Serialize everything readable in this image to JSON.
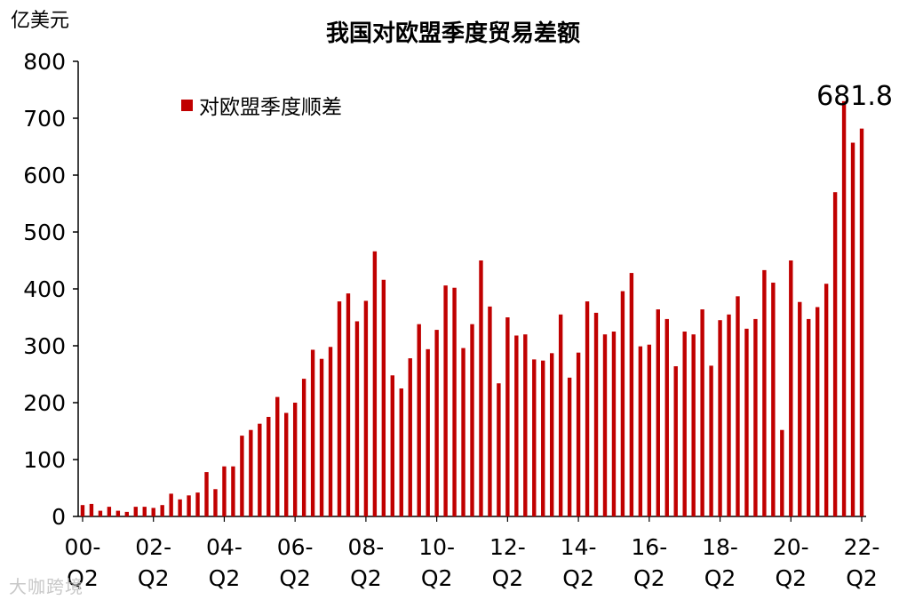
{
  "watermark": "大咖跨境",
  "chart_data": {
    "type": "bar",
    "title": "我国对欧盟季度贸易差额",
    "unit_label": "亿美元",
    "legend_position": "top-left",
    "grid": false,
    "ylim": [
      0,
      800
    ],
    "yticks": [
      "0",
      "100",
      "200",
      "300",
      "400",
      "500",
      "600",
      "700",
      "800"
    ],
    "xtick_labels": [
      {
        "index": 0,
        "top": "00-",
        "bottom": "Q2"
      },
      {
        "index": 8,
        "top": "02-",
        "bottom": "Q2"
      },
      {
        "index": 16,
        "top": "04-",
        "bottom": "Q2"
      },
      {
        "index": 24,
        "top": "06-",
        "bottom": "Q2"
      },
      {
        "index": 32,
        "top": "08-",
        "bottom": "Q2"
      },
      {
        "index": 40,
        "top": "10-",
        "bottom": "Q2"
      },
      {
        "index": 48,
        "top": "12-",
        "bottom": "Q2"
      },
      {
        "index": 56,
        "top": "14-",
        "bottom": "Q2"
      },
      {
        "index": 64,
        "top": "16-",
        "bottom": "Q2"
      },
      {
        "index": 72,
        "top": "18-",
        "bottom": "Q2"
      },
      {
        "index": 80,
        "top": "20-",
        "bottom": "Q2"
      },
      {
        "index": 88,
        "top": "22-",
        "bottom": "Q2"
      }
    ],
    "annotation": {
      "index": 88,
      "text": "681.8"
    },
    "series": [
      {
        "name": "对欧盟季度顺差",
        "color": "#c00000",
        "values": [
          20,
          22,
          10,
          17,
          10,
          8,
          17,
          17,
          15,
          20,
          40,
          30,
          37,
          42,
          78,
          48,
          88,
          88,
          142,
          152,
          163,
          175,
          210,
          182,
          200,
          242,
          293,
          277,
          298,
          378,
          392,
          343,
          379,
          466,
          416,
          248,
          225,
          278,
          338,
          294,
          328,
          406,
          402,
          296,
          338,
          450,
          369,
          234,
          350,
          318,
          320,
          276,
          274,
          287,
          355,
          244,
          288,
          378,
          358,
          320,
          325,
          396,
          428,
          299,
          302,
          364,
          347,
          264,
          325,
          320,
          364,
          265,
          345,
          355,
          387,
          330,
          347,
          433,
          411,
          152,
          450,
          377,
          347,
          368,
          409,
          570,
          730,
          657,
          681.8
        ]
      }
    ]
  }
}
